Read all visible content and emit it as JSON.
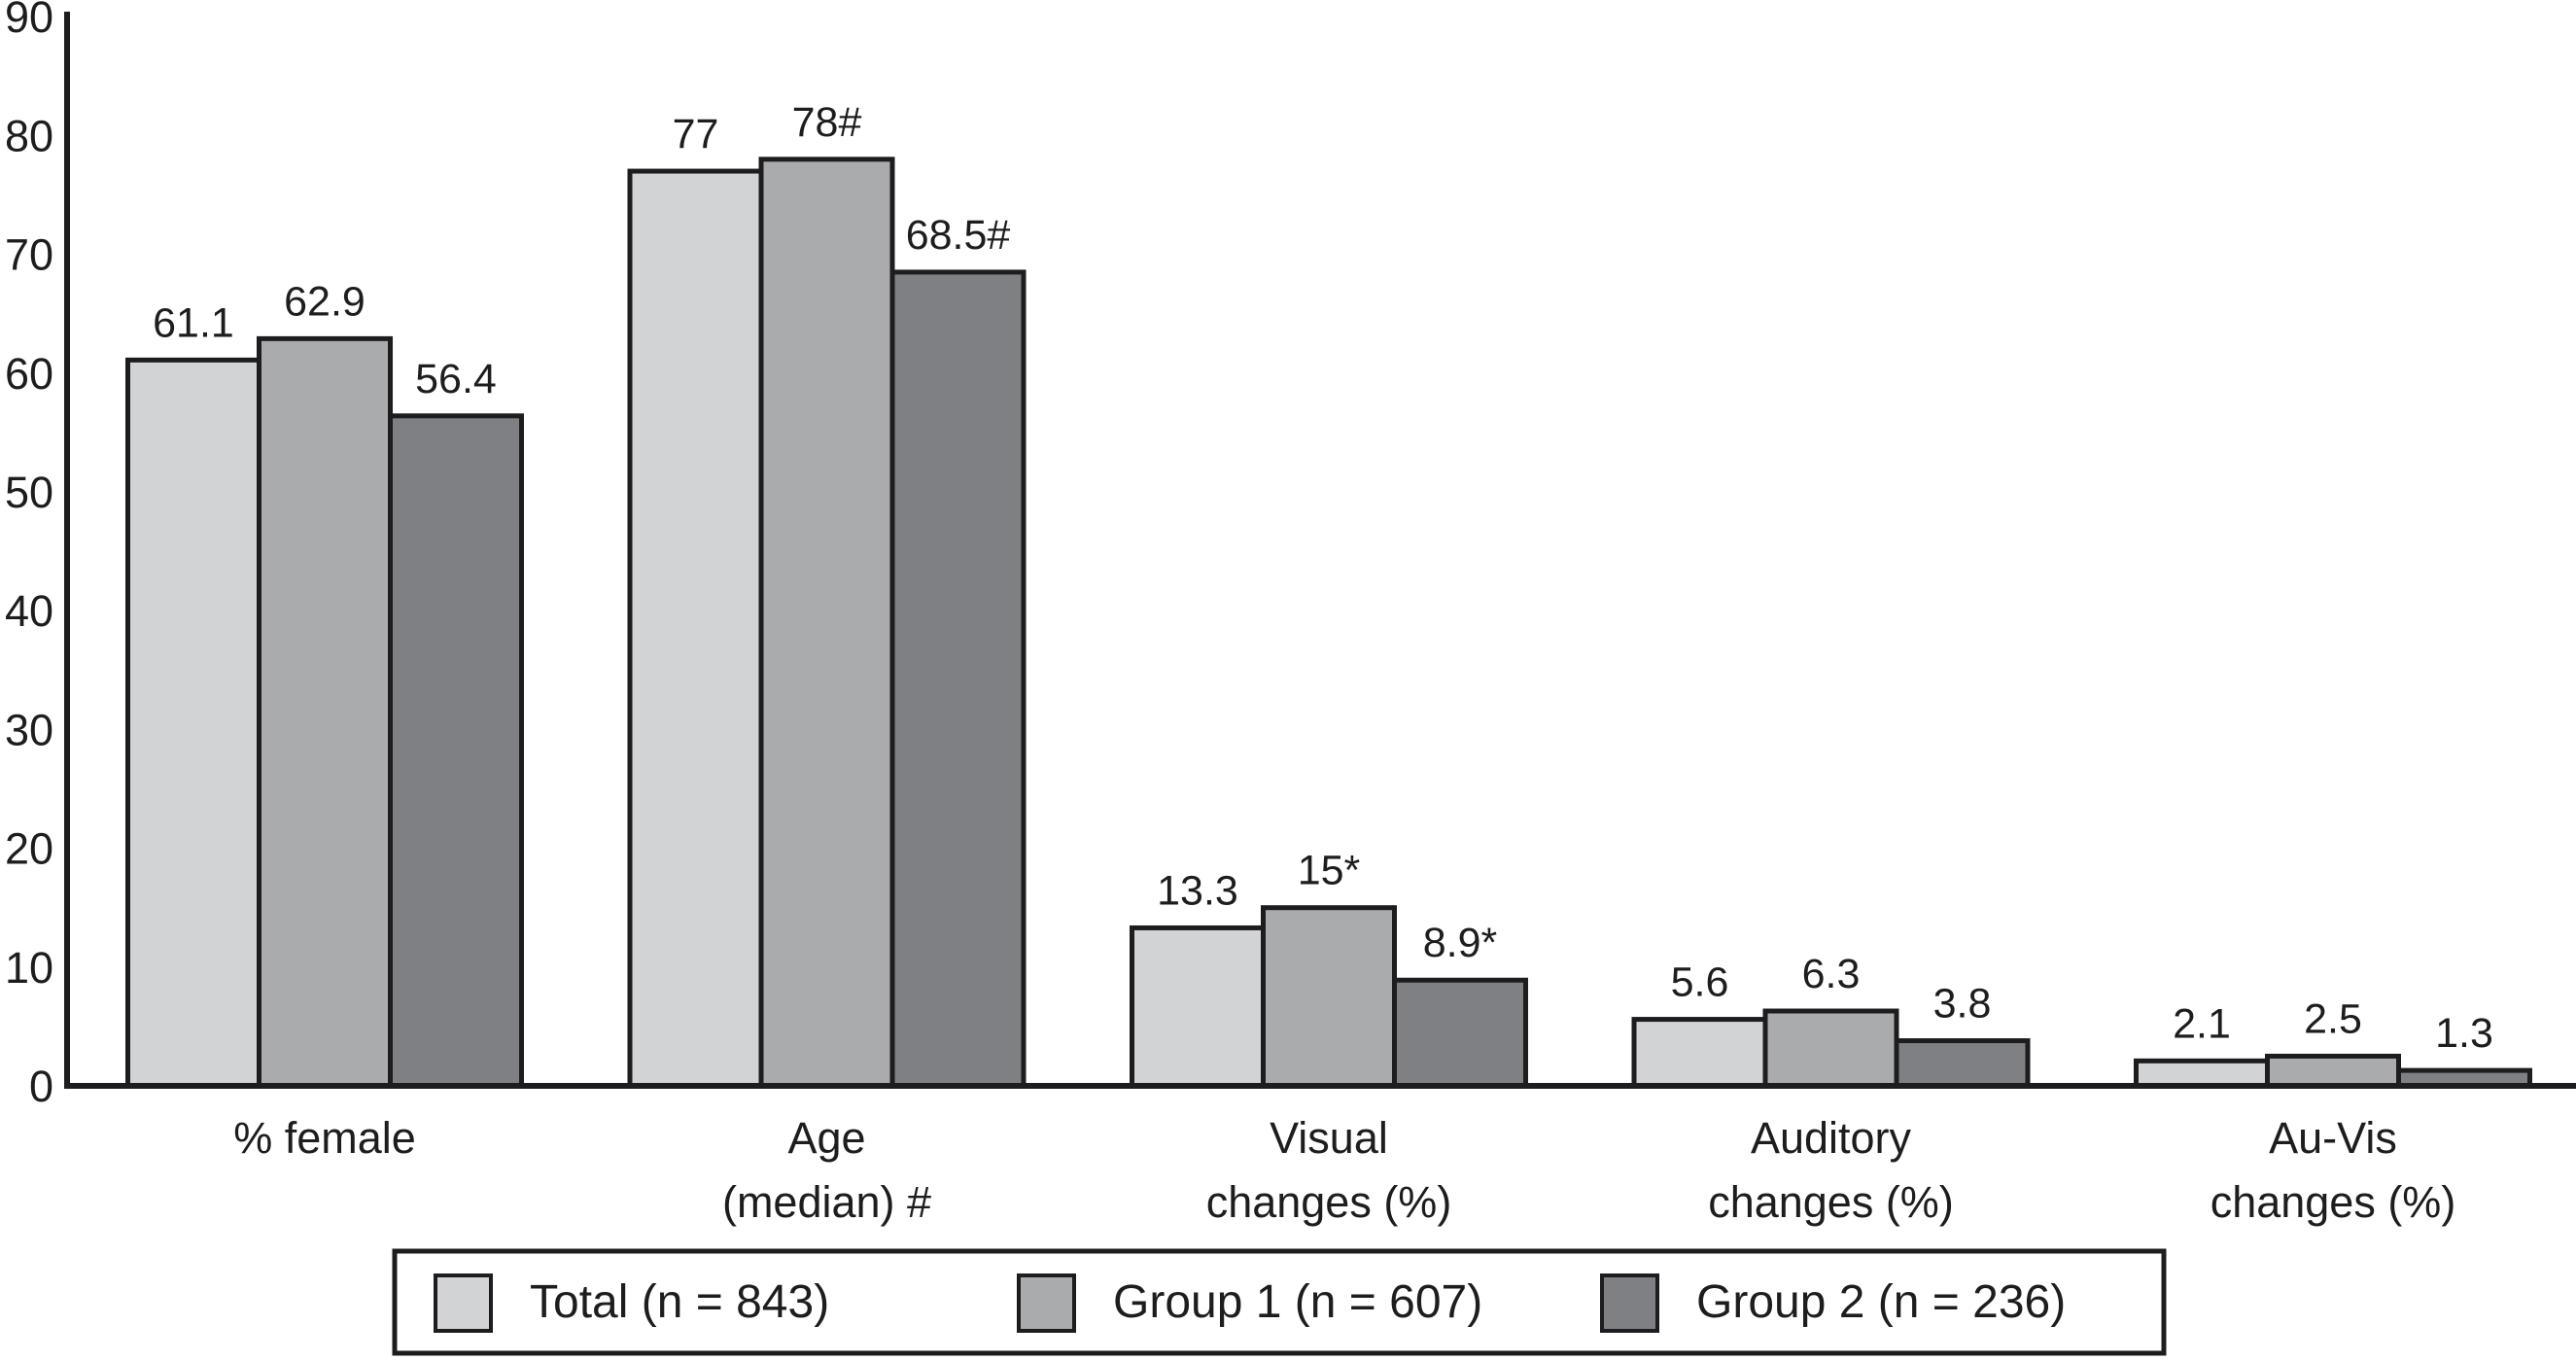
{
  "chart_data": {
    "type": "bar",
    "title": "",
    "xlabel": "",
    "ylabel": "",
    "ylim": [
      0,
      90
    ],
    "yticks": [
      0,
      10,
      20,
      30,
      40,
      50,
      60,
      70,
      80,
      90
    ],
    "grid": false,
    "legend_position": "bottom-boxed",
    "background_color": "#ffffff",
    "axis_color": "#1d1d1f",
    "text_color": "#1d1d1f",
    "bar_border_color": "#1d1d1f",
    "categories": [
      {
        "lines": [
          "% female"
        ]
      },
      {
        "lines": [
          "Age",
          "(median) #"
        ]
      },
      {
        "lines": [
          "Visual",
          "changes (%)"
        ]
      },
      {
        "lines": [
          "Auditory",
          "changes (%)"
        ]
      },
      {
        "lines": [
          "Au-Vis",
          "changes (%)"
        ]
      }
    ],
    "series": [
      {
        "name": "Total (n = 843)",
        "color": "#d2d3d4",
        "values": [
          61.1,
          77,
          13.3,
          5.6,
          2.1
        ],
        "value_labels": [
          "61.1",
          "77",
          "13.3",
          "5.6",
          "2.1"
        ]
      },
      {
        "name": "Group 1 (n = 607)",
        "color": "#a9abad",
        "values": [
          62.9,
          78,
          15,
          6.3,
          2.5
        ],
        "value_labels": [
          "62.9",
          "78#",
          "15*",
          "6.3",
          "2.5"
        ]
      },
      {
        "name": "Group 2 (n = 236)",
        "color": "#7e8083",
        "values": [
          56.4,
          68.5,
          8.9,
          3.8,
          1.3
        ],
        "value_labels": [
          "56.4",
          "68.5#",
          "8.9*",
          "3.8",
          "1.3"
        ]
      }
    ]
  }
}
